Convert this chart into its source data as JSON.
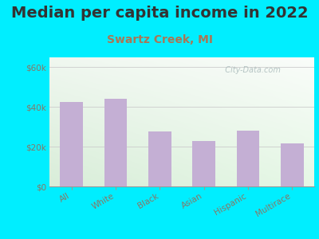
{
  "title": "Median per capita income in 2022",
  "subtitle": "Swartz Creek, MI",
  "categories": [
    "All",
    "White",
    "Black",
    "Asian",
    "Hispanic",
    "Multirace"
  ],
  "values": [
    42500,
    44000,
    27500,
    23000,
    28000,
    21500
  ],
  "bar_color": "#c4afd4",
  "title_fontsize": 14,
  "subtitle_fontsize": 10,
  "subtitle_color": "#aa7755",
  "tick_label_color": "#887766",
  "ytick_labels": [
    "$0",
    "$20k",
    "$40k",
    "$60k"
  ],
  "ytick_values": [
    0,
    20000,
    40000,
    60000
  ],
  "ylim": [
    0,
    65000
  ],
  "bg_outer": "#00eeff",
  "watermark": "  City-Data.com",
  "watermark_color": "#aabbbb",
  "title_color": "#333333"
}
